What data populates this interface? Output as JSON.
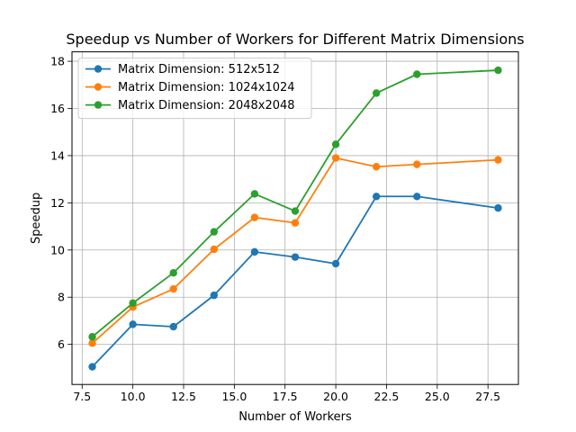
{
  "chart_data": {
    "type": "line",
    "title": "Speedup vs Number of Workers for Different Matrix Dimensions",
    "xlabel": "Number of Workers",
    "ylabel": "Speedup",
    "xlim": [
      7.0,
      29.0
    ],
    "ylim": [
      4.3,
      18.4
    ],
    "xticks": [
      "7.5",
      "10.0",
      "12.5",
      "15.0",
      "17.5",
      "20.0",
      "22.5",
      "25.0",
      "27.5"
    ],
    "yticks": [
      "6",
      "8",
      "10",
      "12",
      "14",
      "16",
      "18"
    ],
    "grid": true,
    "legend_position": "upper-left",
    "x": [
      8,
      10,
      12,
      14,
      16,
      18,
      20,
      22,
      24,
      28
    ],
    "series": [
      {
        "name": "Matrix Dimension: 512x512",
        "color": "#1f77b4",
        "values": [
          5.05,
          6.85,
          6.75,
          8.08,
          9.92,
          9.7,
          9.42,
          12.27,
          12.27,
          11.78
        ]
      },
      {
        "name": "Matrix Dimension: 1024x1024",
        "color": "#ff7f0e",
        "values": [
          6.05,
          7.58,
          8.35,
          10.03,
          11.38,
          11.15,
          13.9,
          13.53,
          13.63,
          13.82
        ]
      },
      {
        "name": "Matrix Dimension: 2048x2048",
        "color": "#2ca02c",
        "values": [
          6.32,
          7.75,
          9.03,
          10.77,
          12.38,
          11.65,
          14.48,
          16.65,
          17.45,
          17.62
        ]
      }
    ]
  }
}
